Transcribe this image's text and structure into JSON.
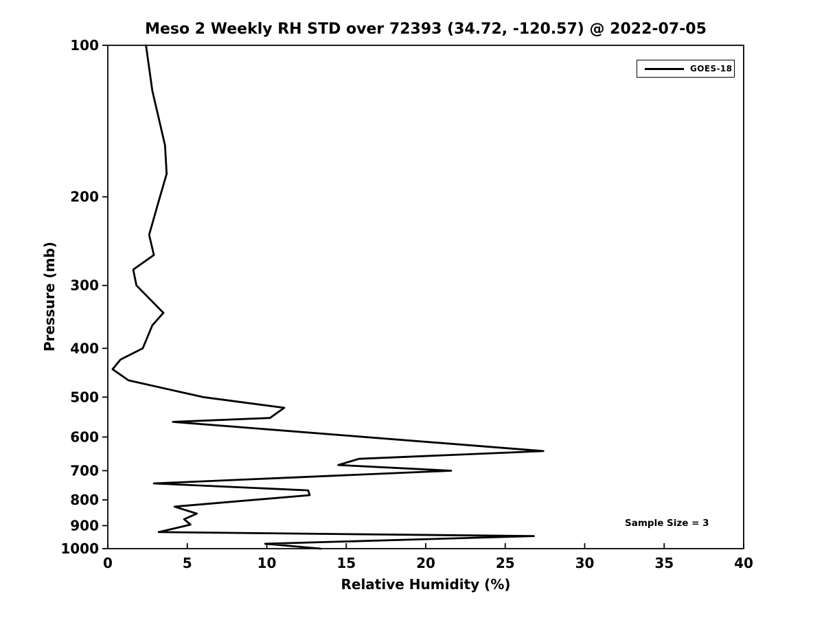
{
  "chart_data": {
    "type": "line",
    "title": "Meso 2 Weekly RH STD over 72393 (34.72, -120.57) @ 2022-07-05",
    "xlabel": "Relative Humidity (%)",
    "ylabel": "Pressure (mb)",
    "xlim": [
      0,
      40
    ],
    "ylim": [
      100,
      1000
    ],
    "x_scale": "linear",
    "y_scale": "log",
    "y_inverted": true,
    "grid": false,
    "x_ticks": [
      0,
      5,
      10,
      15,
      20,
      25,
      30,
      35,
      40
    ],
    "y_ticks": [
      100,
      200,
      300,
      400,
      500,
      600,
      700,
      800,
      900,
      1000
    ],
    "legend": {
      "position": "upper-right",
      "entries": [
        "GOES-18"
      ]
    },
    "annotations": [
      "Sample Size = 3"
    ],
    "series": [
      {
        "name": "GOES-18",
        "color": "#000000",
        "line_width": 2.8,
        "point_format": [
          "pressure_mb",
          "rh_std_percent"
        ],
        "points": [
          [
            100,
            2.4
          ],
          [
            123,
            2.8
          ],
          [
            158,
            3.6
          ],
          [
            180,
            3.7
          ],
          [
            204,
            3.2
          ],
          [
            238,
            2.6
          ],
          [
            261,
            2.9
          ],
          [
            279,
            1.6
          ],
          [
            300,
            1.8
          ],
          [
            340,
            3.5
          ],
          [
            360,
            2.8
          ],
          [
            400,
            2.2
          ],
          [
            421,
            0.8
          ],
          [
            440,
            0.3
          ],
          [
            463,
            1.3
          ],
          [
            500,
            6.0
          ],
          [
            525,
            11.1
          ],
          [
            550,
            10.2
          ],
          [
            560,
            4.1
          ],
          [
            640,
            27.4
          ],
          [
            663,
            15.8
          ],
          [
            682,
            14.5
          ],
          [
            700,
            21.6
          ],
          [
            742,
            2.9
          ],
          [
            766,
            12.6
          ],
          [
            783,
            12.7
          ],
          [
            825,
            4.2
          ],
          [
            852,
            5.6
          ],
          [
            874,
            4.8
          ],
          [
            896,
            5.2
          ],
          [
            927,
            3.2
          ],
          [
            944,
            26.8
          ],
          [
            978,
            9.9
          ],
          [
            1000,
            13.4
          ]
        ]
      }
    ]
  }
}
